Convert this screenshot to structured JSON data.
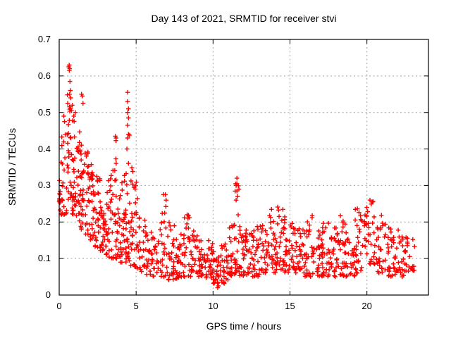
{
  "title": "Day 143 of 2021, SRMTID for receiver stvi",
  "colors": {
    "marker": "#ff0000",
    "grid": "#a0a0a0",
    "border": "#000000",
    "background": "#ffffff"
  },
  "chart_data": {
    "type": "scatter",
    "title": "Day 143 of 2021, SRMTID for receiver stvi",
    "xlabel": "GPS time / hours",
    "ylabel": "SRMTID / TECUs",
    "xlim": [
      0,
      24
    ],
    "ylim": [
      0,
      0.7
    ],
    "xticks": [
      [
        0,
        "0"
      ],
      [
        5,
        "5"
      ],
      [
        10,
        "10"
      ],
      [
        15,
        "15"
      ],
      [
        20,
        "20"
      ]
    ],
    "yticks": [
      [
        0,
        "0"
      ],
      [
        0.1,
        "0.1"
      ],
      [
        0.2,
        "0.2"
      ],
      [
        0.3,
        "0.3"
      ],
      [
        0.4,
        "0.4"
      ],
      [
        0.5,
        "0.5"
      ],
      [
        0.6,
        "0.6"
      ],
      [
        0.7,
        "0.7"
      ]
    ],
    "grid": true,
    "legend": null,
    "marker": {
      "shape": "plus",
      "size": 6.5,
      "stroke_width": 1.4
    },
    "seed": 42,
    "cloud_bins": [
      [
        0.0,
        0.08,
        0.19,
        0.33,
        10,
        1.0
      ],
      [
        0.1,
        0.5,
        0.22,
        0.5,
        22,
        1.6
      ],
      [
        0.5,
        0.8,
        0.25,
        0.55,
        26,
        1.4
      ],
      [
        0.8,
        1.1,
        0.22,
        0.48,
        26,
        1.5
      ],
      [
        1.1,
        1.4,
        0.2,
        0.45,
        24,
        1.5
      ],
      [
        1.4,
        1.7,
        0.18,
        0.43,
        24,
        1.4
      ],
      [
        1.7,
        2.0,
        0.16,
        0.4,
        24,
        1.5
      ],
      [
        2.0,
        2.3,
        0.15,
        0.37,
        24,
        1.5
      ],
      [
        2.3,
        2.6,
        0.13,
        0.34,
        22,
        1.5
      ],
      [
        2.6,
        2.9,
        0.12,
        0.32,
        22,
        1.5
      ],
      [
        2.9,
        3.2,
        0.11,
        0.3,
        22,
        1.5
      ],
      [
        3.2,
        3.5,
        0.1,
        0.35,
        22,
        1.7
      ],
      [
        3.5,
        3.8,
        0.1,
        0.44,
        22,
        2.0
      ],
      [
        3.8,
        4.1,
        0.09,
        0.33,
        22,
        1.7
      ],
      [
        4.1,
        4.35,
        0.09,
        0.38,
        18,
        1.7
      ],
      [
        4.35,
        4.6,
        0.09,
        0.555,
        20,
        1.9
      ],
      [
        4.6,
        4.9,
        0.08,
        0.35,
        18,
        1.8
      ],
      [
        4.9,
        5.2,
        0.07,
        0.31,
        18,
        1.6
      ],
      [
        5.2,
        5.6,
        0.06,
        0.22,
        20,
        1.4
      ],
      [
        5.6,
        6.0,
        0.055,
        0.18,
        20,
        1.3
      ],
      [
        6.0,
        6.5,
        0.05,
        0.16,
        22,
        1.2
      ],
      [
        6.5,
        7.0,
        0.05,
        0.28,
        24,
        1.8
      ],
      [
        7.0,
        7.5,
        0.04,
        0.2,
        26,
        1.6
      ],
      [
        7.5,
        8.0,
        0.045,
        0.17,
        26,
        1.4
      ],
      [
        8.0,
        8.5,
        0.05,
        0.22,
        26,
        1.6
      ],
      [
        8.5,
        9.0,
        0.05,
        0.18,
        26,
        1.4
      ],
      [
        9.0,
        9.5,
        0.05,
        0.16,
        26,
        1.3
      ],
      [
        9.5,
        10.0,
        0.045,
        0.15,
        26,
        1.3
      ],
      [
        10.0,
        10.5,
        0.03,
        0.12,
        26,
        1.2
      ],
      [
        10.5,
        11.0,
        0.03,
        0.14,
        26,
        1.3
      ],
      [
        11.0,
        11.4,
        0.05,
        0.2,
        22,
        1.5
      ],
      [
        11.4,
        11.7,
        0.06,
        0.32,
        20,
        1.8
      ],
      [
        11.7,
        12.1,
        0.05,
        0.22,
        22,
        1.6
      ],
      [
        12.1,
        12.6,
        0.05,
        0.18,
        26,
        1.4
      ],
      [
        12.6,
        13.1,
        0.05,
        0.19,
        26,
        1.4
      ],
      [
        13.1,
        13.6,
        0.06,
        0.22,
        26,
        1.5
      ],
      [
        13.6,
        14.1,
        0.06,
        0.25,
        26,
        1.5
      ],
      [
        14.1,
        14.6,
        0.07,
        0.25,
        28,
        1.5
      ],
      [
        14.6,
        15.1,
        0.06,
        0.22,
        26,
        1.4
      ],
      [
        15.1,
        15.6,
        0.06,
        0.2,
        26,
        1.4
      ],
      [
        15.6,
        16.1,
        0.05,
        0.18,
        26,
        1.3
      ],
      [
        16.1,
        16.6,
        0.05,
        0.22,
        26,
        1.5
      ],
      [
        16.6,
        17.1,
        0.05,
        0.18,
        26,
        1.3
      ],
      [
        17.1,
        17.6,
        0.05,
        0.2,
        26,
        1.4
      ],
      [
        17.6,
        18.1,
        0.05,
        0.19,
        26,
        1.4
      ],
      [
        18.1,
        18.6,
        0.05,
        0.22,
        26,
        1.5
      ],
      [
        18.6,
        19.2,
        0.05,
        0.18,
        28,
        1.4
      ],
      [
        19.2,
        19.8,
        0.06,
        0.24,
        28,
        1.4
      ],
      [
        19.8,
        20.6,
        0.08,
        0.26,
        34,
        1.3
      ],
      [
        20.6,
        21.2,
        0.06,
        0.22,
        28,
        1.4
      ],
      [
        21.2,
        21.8,
        0.05,
        0.2,
        26,
        1.4
      ],
      [
        21.8,
        22.4,
        0.05,
        0.18,
        26,
        1.3
      ],
      [
        22.4,
        23.1,
        0.06,
        0.16,
        24,
        1.2
      ]
    ],
    "outliers": [
      [
        0.62,
        0.625
      ],
      [
        0.65,
        0.63
      ],
      [
        0.68,
        0.62
      ],
      [
        0.66,
        0.615
      ],
      [
        0.7,
        0.585
      ],
      [
        0.72,
        0.56
      ],
      [
        0.68,
        0.55
      ],
      [
        0.75,
        0.54
      ],
      [
        0.55,
        0.525
      ],
      [
        0.85,
        0.52
      ],
      [
        0.3,
        0.49
      ],
      [
        0.35,
        0.475
      ],
      [
        0.95,
        0.49
      ],
      [
        1.05,
        0.5
      ],
      [
        1.45,
        0.55
      ],
      [
        1.5,
        0.545
      ],
      [
        1.55,
        0.525
      ],
      [
        3.65,
        0.435
      ],
      [
        3.7,
        0.43
      ],
      [
        4.45,
        0.555
      ],
      [
        4.45,
        0.53
      ],
      [
        4.5,
        0.51
      ],
      [
        4.45,
        0.5
      ],
      [
        4.5,
        0.485
      ],
      [
        4.45,
        0.465
      ],
      [
        4.5,
        0.44
      ],
      [
        4.45,
        0.43
      ],
      [
        4.4,
        0.4
      ],
      [
        6.9,
        0.275
      ],
      [
        6.95,
        0.26
      ],
      [
        11.55,
        0.32
      ],
      [
        11.55,
        0.305
      ],
      [
        11.5,
        0.3
      ],
      [
        11.55,
        0.285
      ],
      [
        11.6,
        0.27
      ],
      [
        11.5,
        0.26
      ],
      [
        10.3,
        0.02
      ],
      [
        10.35,
        0.025
      ],
      [
        20.2,
        0.26
      ],
      [
        20.35,
        0.255
      ]
    ]
  }
}
